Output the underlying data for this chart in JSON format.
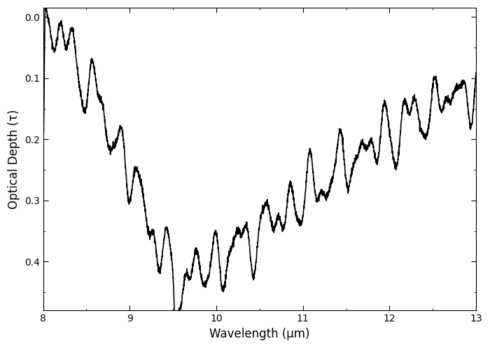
{
  "xlim": [
    8.0,
    13.0
  ],
  "ylim": [
    0.48,
    -0.015
  ],
  "xlabel": "Wavelength (μm)",
  "ylabel": "Optical Depth (τ)",
  "yticks": [
    0.0,
    0.1,
    0.2,
    0.3,
    0.4
  ],
  "xticks": [
    8,
    9,
    10,
    11,
    12,
    13
  ],
  "line_color": "#000000",
  "line_width": 1.2,
  "background_color": "#ffffff",
  "figsize": [
    7.0,
    4.98
  ],
  "dpi": 100
}
